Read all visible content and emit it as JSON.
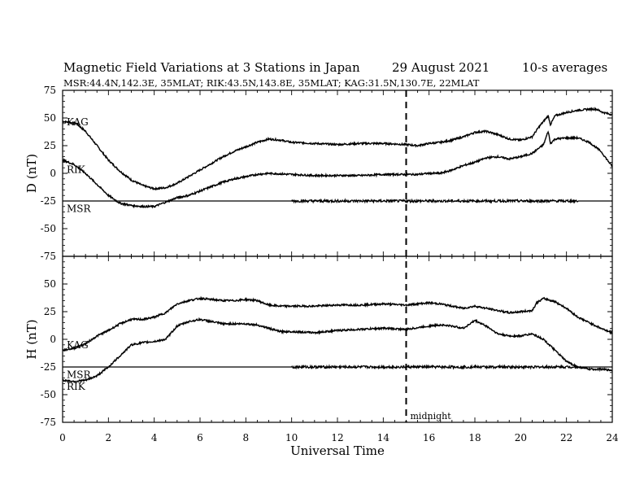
{
  "chart_data": {
    "type": "line",
    "title": "Magnetic Field Variations at 3 Stations in Japan",
    "date": "29  August  2021",
    "note": "10-s averages",
    "subtitle": "MSR:44.4N,142.3E, 35MLAT;  RIK:43.5N,143.8E, 35MLAT;  KAG:31.5N,130.7E, 22MLAT",
    "xlabel": "Universal Time",
    "xlim": [
      0,
      24
    ],
    "xticks": [
      "0",
      "2",
      "4",
      "6",
      "8",
      "10",
      "12",
      "14",
      "16",
      "18",
      "20",
      "22",
      "24"
    ],
    "midnight": {
      "x": 15,
      "label": "midnight"
    },
    "panels": [
      {
        "ylabel": "D (nT)",
        "ylim": [
          -75,
          75
        ],
        "yticks": [
          "75",
          "50",
          "25",
          "0",
          "-25",
          "-50",
          "-75"
        ],
        "series": [
          {
            "name": "KAG",
            "x": [
              0,
              0.6,
              1,
              1.5,
              2,
              2.5,
              3,
              3.5,
              4,
              4.5,
              5,
              5.5,
              6,
              6.5,
              7,
              7.5,
              8,
              8.5,
              9,
              9.5,
              10,
              11,
              12,
              13,
              14,
              15,
              15.5,
              16,
              16.5,
              17,
              17.5,
              18,
              18.5,
              19,
              19.5,
              20,
              20.5,
              20.8,
              21,
              21.2,
              21.3,
              21.5,
              22,
              22.5,
              23,
              23.3,
              23.6,
              24
            ],
            "y": [
              47,
              45,
              38,
              25,
              12,
              2,
              -6,
              -11,
              -14,
              -13,
              -9,
              -3,
              3,
              9,
              15,
              20,
              24,
              28,
              31,
              30,
              28,
              27,
              26,
              27,
              27,
              26,
              25,
              27,
              28,
              30,
              33,
              37,
              38,
              35,
              31,
              30,
              33,
              42,
              47,
              52,
              44,
              52,
              55,
              57,
              58,
              58,
              55,
              53
            ]
          },
          {
            "name": "RIK",
            "x": [
              0,
              0.5,
              1,
              1.5,
              2,
              2.5,
              3,
              3.5,
              4,
              4.5,
              5,
              5.5,
              6,
              6.5,
              7,
              7.5,
              8,
              8.5,
              9,
              10,
              11,
              12,
              13,
              14,
              15,
              15.5,
              16,
              16.5,
              17,
              17.5,
              18,
              18.5,
              19,
              19.5,
              20,
              20.5,
              21,
              21.2,
              21.3,
              21.5,
              22,
              22.5,
              23,
              23.5,
              24
            ],
            "y": [
              12,
              8,
              0,
              -10,
              -20,
              -27,
              -29,
              -30,
              -30,
              -26,
              -22,
              -20,
              -16,
              -12,
              -8,
              -5,
              -3,
              -1,
              0,
              -1,
              -2,
              -2,
              -2,
              -1,
              -1,
              -1,
              0,
              0,
              3,
              7,
              10,
              14,
              15,
              13,
              15,
              18,
              26,
              38,
              27,
              31,
              32,
              32,
              28,
              20,
              6
            ]
          },
          {
            "name": "MSR",
            "x": [
              0,
              4,
              8,
              12,
              16,
              20,
              24
            ],
            "y": [
              -25,
              -25,
              -25,
              -25,
              -25,
              -25,
              -25
            ]
          }
        ]
      },
      {
        "ylabel": "H (nT)",
        "ylim": [
          -75,
          75
        ],
        "yticks": [
          "75",
          "50",
          "25",
          "0",
          "-25",
          "-50",
          "-75"
        ],
        "series": [
          {
            "name": "KAG",
            "x": [
              0,
              0.5,
              1,
              1.5,
              2,
              2.5,
              3,
              3.5,
              4,
              4.5,
              5,
              5.5,
              6,
              6.5,
              7,
              7.5,
              8,
              8.5,
              9,
              9.5,
              10,
              11,
              12,
              13,
              14,
              15,
              16,
              16.5,
              17,
              17.5,
              18,
              18.5,
              19,
              19.5,
              20,
              20.5,
              20.7,
              21,
              21.5,
              22,
              22.5,
              23,
              23.5,
              24
            ],
            "y": [
              -10,
              -8,
              -4,
              3,
              8,
              14,
              18,
              18,
              20,
              24,
              32,
              35,
              37,
              36,
              35,
              35,
              36,
              35,
              31,
              30,
              30,
              30,
              31,
              31,
              32,
              31,
              33,
              32,
              30,
              28,
              30,
              28,
              26,
              24,
              25,
              26,
              33,
              37,
              34,
              28,
              20,
              15,
              10,
              6
            ]
          },
          {
            "name": "RIK",
            "x": [
              0,
              0.5,
              1,
              1.5,
              2,
              2.5,
              3,
              3.5,
              4,
              4.5,
              5,
              5.5,
              6,
              6.5,
              7,
              7.5,
              8,
              8.5,
              9,
              9.5,
              10,
              11,
              12,
              13,
              14,
              15,
              16,
              16.5,
              17,
              17.5,
              18,
              18.5,
              19,
              19.5,
              20,
              20.5,
              21,
              21.5,
              22,
              22.5,
              23,
              23.5,
              24
            ],
            "y": [
              -37,
              -38,
              -37,
              -33,
              -25,
              -15,
              -5,
              -3,
              -2,
              0,
              12,
              16,
              18,
              16,
              14,
              14,
              14,
              13,
              10,
              7,
              7,
              6,
              8,
              9,
              10,
              9,
              12,
              13,
              12,
              10,
              17,
              12,
              5,
              3,
              3,
              5,
              0,
              -10,
              -20,
              -25,
              -27,
              -27,
              -28
            ]
          },
          {
            "name": "MSR",
            "x": [
              0,
              4,
              8,
              12,
              16,
              20,
              24
            ],
            "y": [
              -25,
              -25,
              -25,
              -25,
              -25,
              -25,
              -25
            ]
          }
        ]
      }
    ]
  }
}
